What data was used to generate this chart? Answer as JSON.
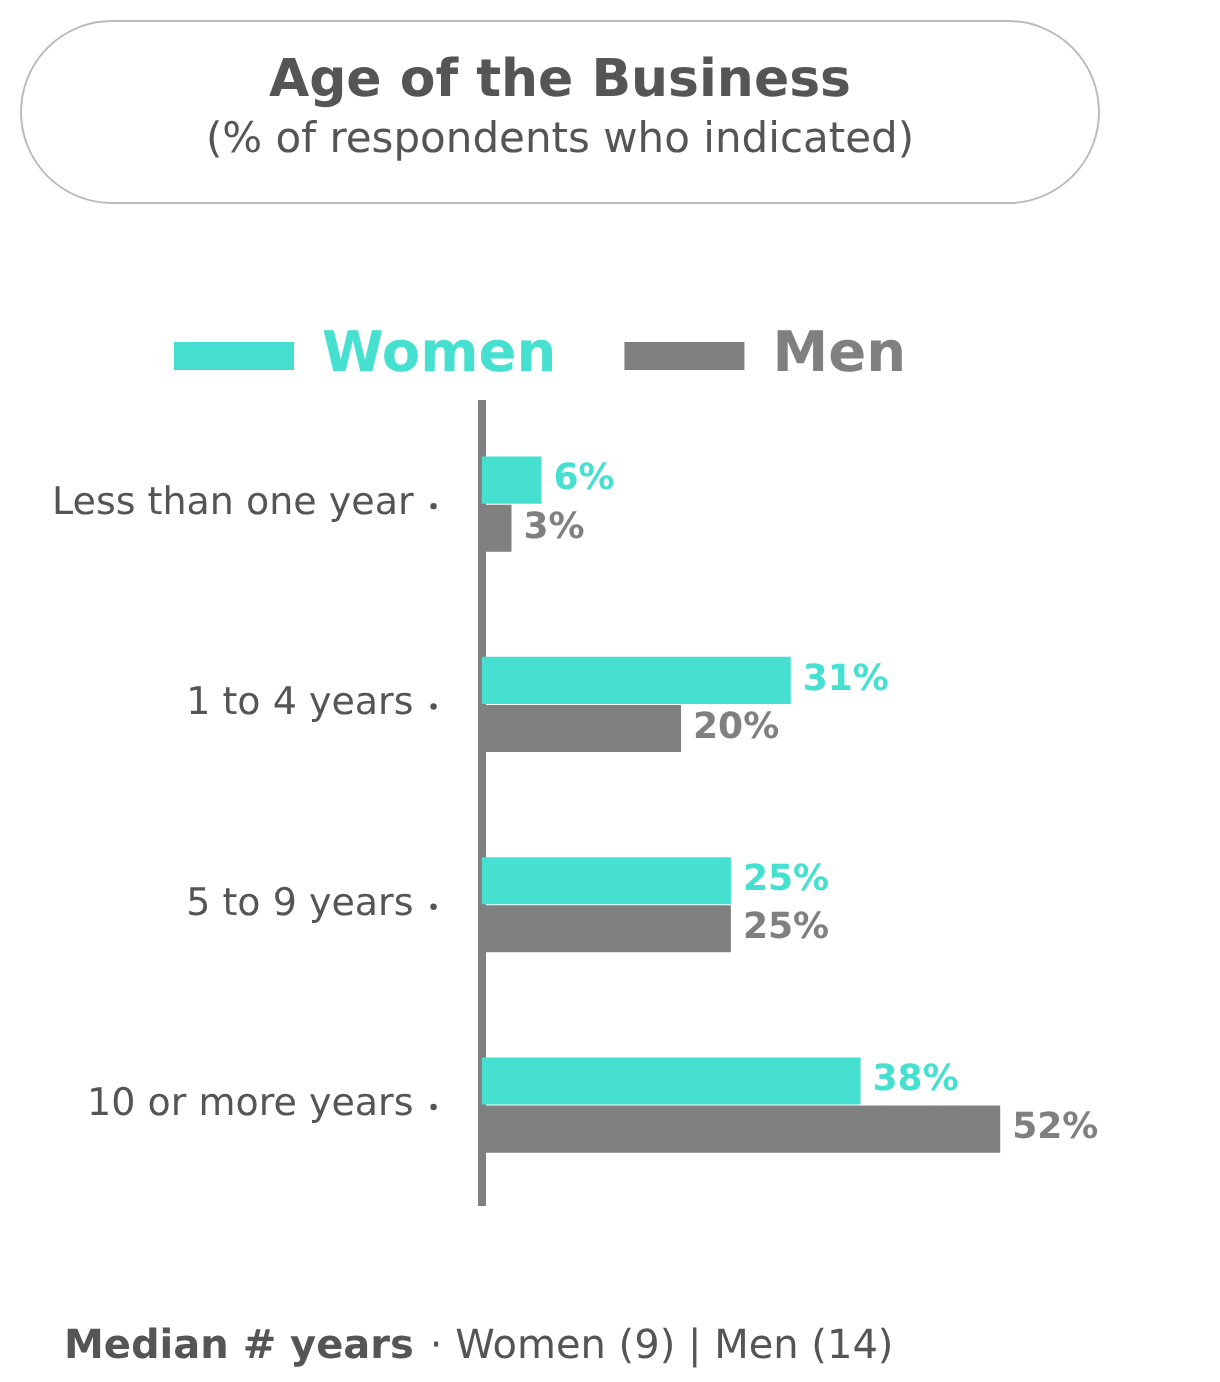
{
  "chart_data": {
    "type": "bar",
    "orientation": "horizontal",
    "title": "Age of the Business",
    "subtitle": "(% of respondents who indicated)",
    "categories": [
      "Less than one year",
      "1 to 4 years",
      "5 to 9 years",
      "10 or more years"
    ],
    "series": [
      {
        "name": "Women",
        "color": "#45e0d0",
        "values": [
          6,
          31,
          25,
          38
        ],
        "value_labels": [
          "6%",
          "31%",
          "25%",
          "38%"
        ]
      },
      {
        "name": "Men",
        "color": "#808080",
        "values": [
          3,
          20,
          25,
          52
        ],
        "value_labels": [
          "3%",
          "20%",
          "25%",
          "52%"
        ]
      }
    ],
    "tick_labels": "y",
    "legend": "top",
    "annotations": [
      "Median # years",
      "· Women (9) | Men (14)"
    ]
  }
}
